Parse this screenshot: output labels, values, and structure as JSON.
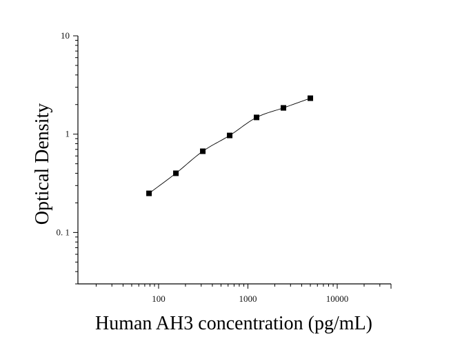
{
  "chart_data": {
    "type": "scatter",
    "xlabel": "Human AH3 concentration (pg/mL)",
    "ylabel": "Optical Density",
    "xscale": "log",
    "yscale": "log",
    "xlim": [
      12.5,
      40000
    ],
    "ylim": [
      0.03,
      10
    ],
    "x_ticks": [
      100,
      1000,
      10000
    ],
    "x_tick_labels": [
      "100",
      "1000",
      "10000"
    ],
    "y_ticks": [
      0.1,
      1,
      10
    ],
    "y_tick_labels": [
      "0. 1",
      "1",
      "10"
    ],
    "grid": false,
    "legend": "none",
    "fit_curve": true,
    "colors": {
      "points": "#000000",
      "curve": "#000000",
      "axes": "#000000"
    },
    "series": [
      {
        "x": [
          78.125,
          156.25,
          312.5,
          625,
          1250,
          2500,
          5000
        ],
        "y": [
          0.25,
          0.4,
          0.67,
          0.97,
          1.48,
          1.85,
          2.32
        ]
      }
    ]
  }
}
